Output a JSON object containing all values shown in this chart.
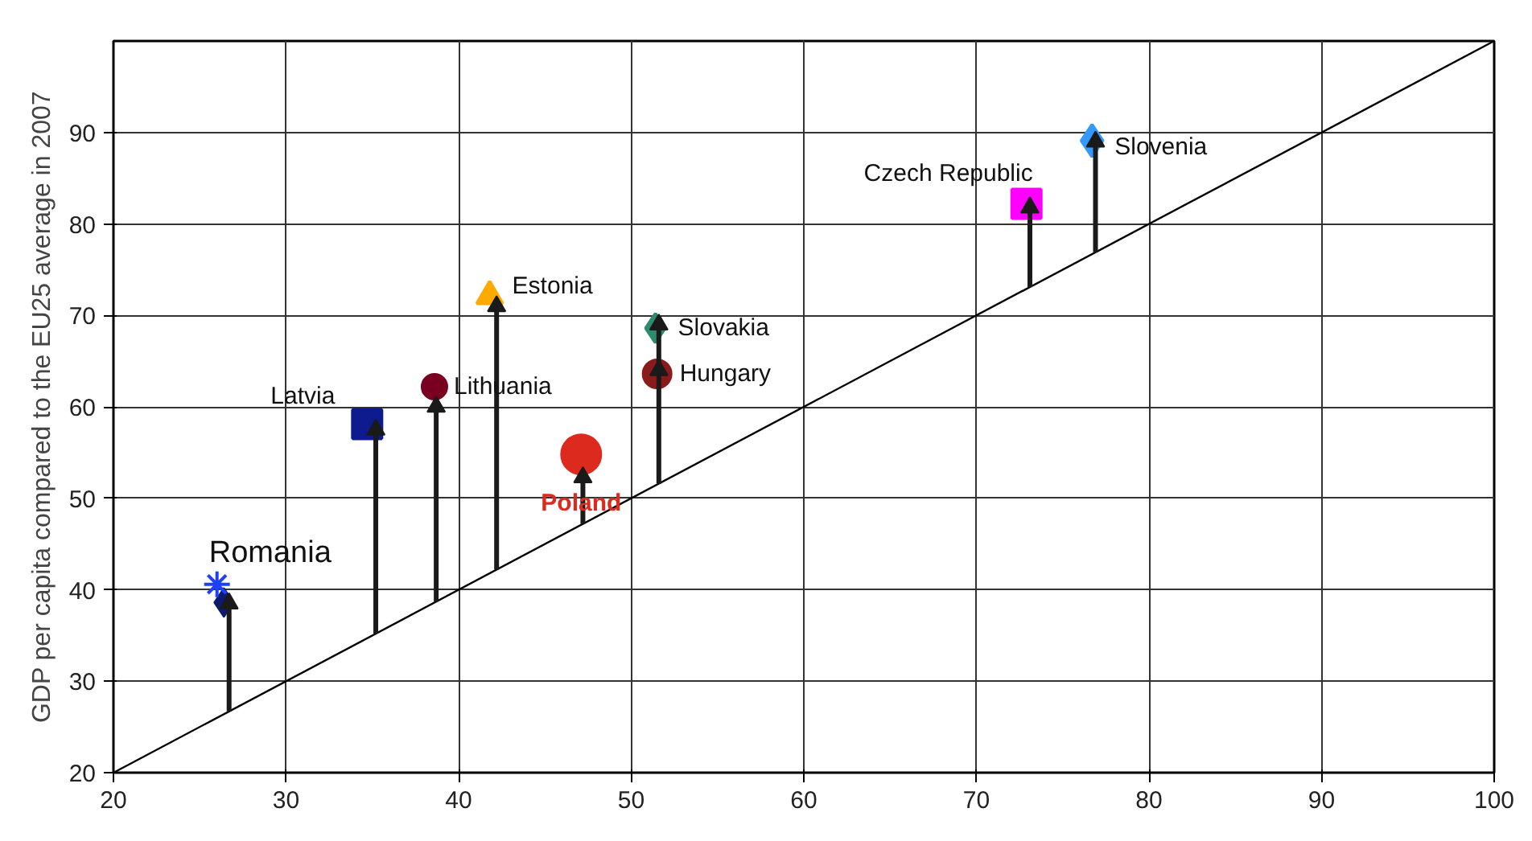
{
  "chart_data": {
    "type": "scatter",
    "ylabel": "GDP per capita compared to the EU25 average in 2007",
    "xlim": [
      20,
      100
    ],
    "ylim": [
      20,
      100
    ],
    "xticks": [
      20,
      30,
      40,
      50,
      60,
      70,
      80,
      90,
      100
    ],
    "yticks": [
      20,
      30,
      40,
      50,
      60,
      70,
      80,
      90
    ],
    "grid": true,
    "series": [
      {
        "type": "line",
        "color": "#000000",
        "marker": "none",
        "x": [
          20,
          100
        ],
        "values": [
          20,
          100
        ]
      },
      {
        "type": "line",
        "color": "#1a1a1a",
        "marker": "triangle",
        "x": [
          26.7,
          26.7
        ],
        "values": [
          26.7,
          38.5
        ]
      },
      {
        "type": "line",
        "color": "#1a1a1a",
        "marker": "triangle",
        "x": [
          35.2,
          35.2
        ],
        "values": [
          35.2,
          57.5
        ]
      },
      {
        "type": "line",
        "color": "#1a1a1a",
        "marker": "triangle",
        "x": [
          38.7,
          38.7
        ],
        "values": [
          38.7,
          60.0
        ]
      },
      {
        "type": "line",
        "color": "#1a1a1a",
        "marker": "triangle",
        "x": [
          42.2,
          42.2
        ],
        "values": [
          42.2,
          71.0
        ]
      },
      {
        "type": "line",
        "color": "#1a1a1a",
        "marker": "triangle",
        "x": [
          47.2,
          47.2
        ],
        "values": [
          47.2,
          52.3
        ]
      },
      {
        "type": "line",
        "color": "#1a1a1a",
        "marker": "triangle",
        "x": [
          51.6,
          51.6,
          51.6
        ],
        "values": [
          51.6,
          64.0,
          69.0
        ]
      },
      {
        "type": "line",
        "color": "#1a1a1a",
        "marker": "triangle",
        "x": [
          73.1,
          73.1
        ],
        "values": [
          73.1,
          81.8
        ]
      },
      {
        "type": "line",
        "color": "#1a1a1a",
        "marker": "triangle",
        "x": [
          76.9,
          76.9
        ],
        "values": [
          76.9,
          89.0
        ]
      },
      {
        "color": "#0d1b6e",
        "marker": "diamond",
        "x": [
          26.4
        ],
        "values": [
          38.6
        ]
      },
      {
        "name": "Romania",
        "color": "#1f3fff",
        "marker": "cross",
        "x": [
          26.0
        ],
        "values": [
          40.6
        ]
      },
      {
        "name": "Latvia",
        "color": "#0d1b8e",
        "marker": "square",
        "x": [
          34.7
        ],
        "values": [
          58.1
        ]
      },
      {
        "name": "Lithuania",
        "color": "#7a0020",
        "marker": "circle",
        "x": [
          38.6
        ],
        "values": [
          62.2
        ]
      },
      {
        "name": "Estonia",
        "color": "#ffaa00",
        "marker": "triangle",
        "x": [
          41.8
        ],
        "values": [
          72.1
        ]
      },
      {
        "name": "Poland",
        "color": "#dd2a1e",
        "marker": "circle",
        "x": [
          47.1
        ],
        "values": [
          54.8
        ]
      },
      {
        "name": "Slovakia",
        "color": "#2e8b6e",
        "marker": "diamond",
        "x": [
          51.4
        ],
        "values": [
          68.6
        ]
      },
      {
        "name": "Hungary",
        "color": "#8b1a1a",
        "marker": "circle",
        "x": [
          51.5
        ],
        "values": [
          63.6
        ]
      },
      {
        "name": "Czech Republic",
        "color": "#ff00ff",
        "marker": "square",
        "x": [
          72.9
        ],
        "values": [
          82.2
        ]
      },
      {
        "name": "Slovenia",
        "color": "#3399ff",
        "marker": "diamond",
        "x": [
          76.7
        ],
        "values": [
          89.1
        ]
      }
    ]
  }
}
